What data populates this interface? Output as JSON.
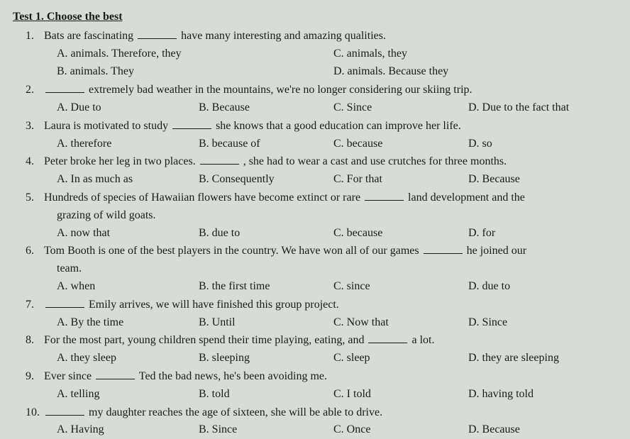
{
  "title": "Test 1. Choose the best",
  "questions": [
    {
      "num": "1.",
      "pre": "Bats are fascinating ",
      "post": " have many interesting and amazing qualities.",
      "layout": "two",
      "opts": {
        "A": "A.  animals. Therefore, they",
        "B": "B.  animals. They",
        "C": "C. animals, they",
        "D": "D. animals. Because they"
      }
    },
    {
      "num": "2.",
      "pre": "",
      "post": " extremely bad weather in the mountains, we're no longer considering our skiing trip.",
      "layout": "four",
      "opts": {
        "A": "A. Due to",
        "B": "B. Because",
        "C": "C. Since",
        "D": "D. Due to the fact that"
      }
    },
    {
      "num": "3.",
      "pre": "Laura is motivated to study ",
      "post": " she knows that a good education can improve her life.",
      "layout": "four",
      "opts": {
        "A": "A.  therefore",
        "B": "B. because of",
        "C": "C. because",
        "D": "D. so"
      }
    },
    {
      "num": "4.",
      "pre": "Peter broke her leg in two places. ",
      "post": " , she had to wear a cast and use crutches for three months.",
      "layout": "four",
      "opts": {
        "A": "A.  In as much as",
        "B": "B. Consequently",
        "C": "C. For that",
        "D": "D. Because"
      }
    },
    {
      "num": "5.",
      "pre": "Hundreds of species of Hawaiian flowers have become extinct or rare ",
      "post": " land development and the",
      "cont": "grazing of wild goats.",
      "layout": "four",
      "opts": {
        "A": "A.  now that",
        "B": "B. due to",
        "C": "C. because",
        "D": "D. for"
      }
    },
    {
      "num": "6.",
      "pre": "Tom Booth is one of the best players in the country. We have won all of our games ",
      "post": " he joined our",
      "cont": "team.",
      "layout": "four",
      "opts": {
        "A": "A.  when",
        "B": "B. the first time",
        "C": "C. since",
        "D": "D. due to"
      }
    },
    {
      "num": "7.",
      "pre": "",
      "post": " Emily arrives, we will have finished this group project.",
      "layout": "four",
      "opts": {
        "A": "A.  By the time",
        "B": "B. Until",
        "C": "C. Now that",
        "D": "D. Since"
      }
    },
    {
      "num": "8.",
      "pre": "For the most part, young children spend their time playing, eating, and ",
      "post": " a lot.",
      "layout": "four",
      "opts": {
        "A": "A.  they sleep",
        "B": "B. sleeping",
        "C": "C. sleep",
        "D": "D. they are sleeping"
      }
    },
    {
      "num": "9.",
      "pre": "Ever since ",
      "post": " Ted the bad news, he's been avoiding me.",
      "layout": "four",
      "opts": {
        "A": "A.  telling",
        "B": "B. told",
        "C": "C. I told",
        "D": "D. having told"
      }
    },
    {
      "num": "10.",
      "pre": "",
      "post": " my daughter reaches the age of sixteen, she will be able to drive.",
      "layout": "four",
      "opts": {
        "A": "A.  Having",
        "B": "B. Since",
        "C": "C. Once",
        "D": "D. Because"
      }
    }
  ]
}
